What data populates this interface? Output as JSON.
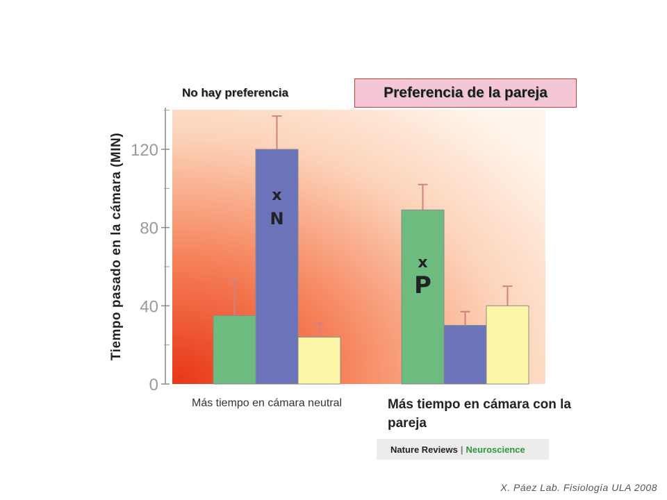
{
  "chart_data": {
    "type": "bar",
    "ylabel": "Tiempo pasado en la cámara (MIN)",
    "ylim": [
      0,
      140
    ],
    "yticks": [
      0,
      40,
      80,
      120
    ],
    "groups": [
      {
        "subtitle": "No hay preferencia",
        "caption": "Más tiempo en cámara neutral",
        "bars": [
          {
            "color": "#6dbb7f",
            "value": 35,
            "error": 18
          },
          {
            "color": "#6b73b9",
            "value": 120,
            "error": 17,
            "marker": "X N"
          },
          {
            "color": "#fdf6a8",
            "value": 24,
            "error": 7
          }
        ]
      },
      {
        "subtitle": "Preferencia de la pareja",
        "caption": "Más tiempo en cámara con la pareja",
        "bars": [
          {
            "color": "#6dbb7f",
            "value": 89,
            "error": 13,
            "marker": "X P"
          },
          {
            "color": "#6b73b9",
            "value": 30,
            "error": 7
          },
          {
            "color": "#fdf6a8",
            "value": 40,
            "error": 10
          }
        ]
      }
    ],
    "marker_labels": {
      "n_star": "x",
      "n_letter": "N",
      "p_star": "x",
      "p_letter": "P"
    },
    "colors": {
      "green": "#6dbb7f",
      "blue": "#6b73b9",
      "yellow": "#fdf6a8",
      "bg_from": "#ee4a1c",
      "bg_to": "#fff3e8"
    }
  },
  "logo": {
    "brand": "Nature Reviews",
    "separator": "|",
    "journal": "Neuroscience"
  },
  "footer": "X. Páez  Lab. Fisiología ULA 2008"
}
